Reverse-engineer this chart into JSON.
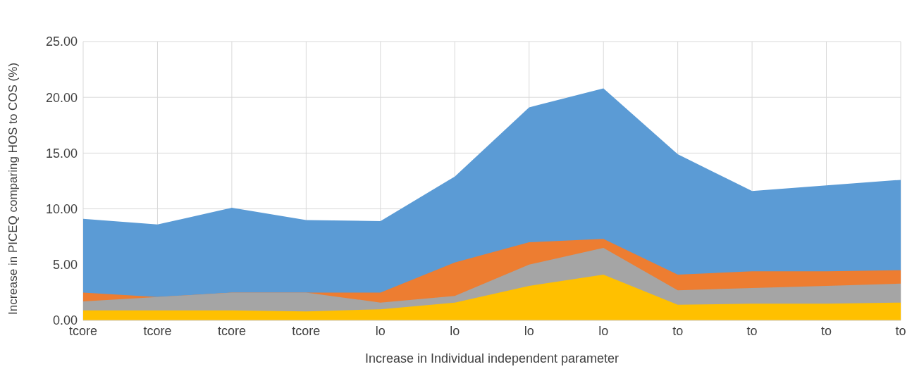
{
  "chart_data": {
    "type": "area",
    "xlabel": "Increase in Individual independent parameter",
    "ylabel": "Increase in PICEQ comparing HOS to COS (%)",
    "categories": [
      "tcore",
      "tcore",
      "tcore",
      "tcore",
      "lo",
      "lo",
      "lo",
      "lo",
      "to",
      "to",
      "to",
      "to"
    ],
    "series": [
      {
        "color": "#5b9bd5",
        "values": [
          9.1,
          8.6,
          10.1,
          9.0,
          8.9,
          12.9,
          19.1,
          20.8,
          14.9,
          11.6,
          12.1,
          12.6
        ]
      },
      {
        "color": "#ed7d31",
        "values": [
          2.5,
          2.1,
          2.5,
          2.5,
          2.5,
          5.2,
          7.0,
          7.3,
          4.1,
          4.4,
          4.4,
          4.5
        ]
      },
      {
        "color": "#a5a5a5",
        "values": [
          1.7,
          2.1,
          2.5,
          2.5,
          1.6,
          2.2,
          5.0,
          6.5,
          2.7,
          2.9,
          3.1,
          3.3
        ]
      },
      {
        "color": "#ffc000",
        "values": [
          0.9,
          0.9,
          0.9,
          0.8,
          1.0,
          1.6,
          3.1,
          4.1,
          1.4,
          1.5,
          1.5,
          1.6
        ]
      }
    ],
    "ylim": [
      0,
      25
    ],
    "yticks": [
      {
        "value": 0,
        "label": "0.00"
      },
      {
        "value": 5,
        "label": "5.00"
      },
      {
        "value": 10,
        "label": "10.00"
      },
      {
        "value": 15,
        "label": "15.00"
      },
      {
        "value": 20,
        "label": "20.00"
      },
      {
        "value": 25,
        "label": "25.00"
      }
    ],
    "grid": true
  }
}
